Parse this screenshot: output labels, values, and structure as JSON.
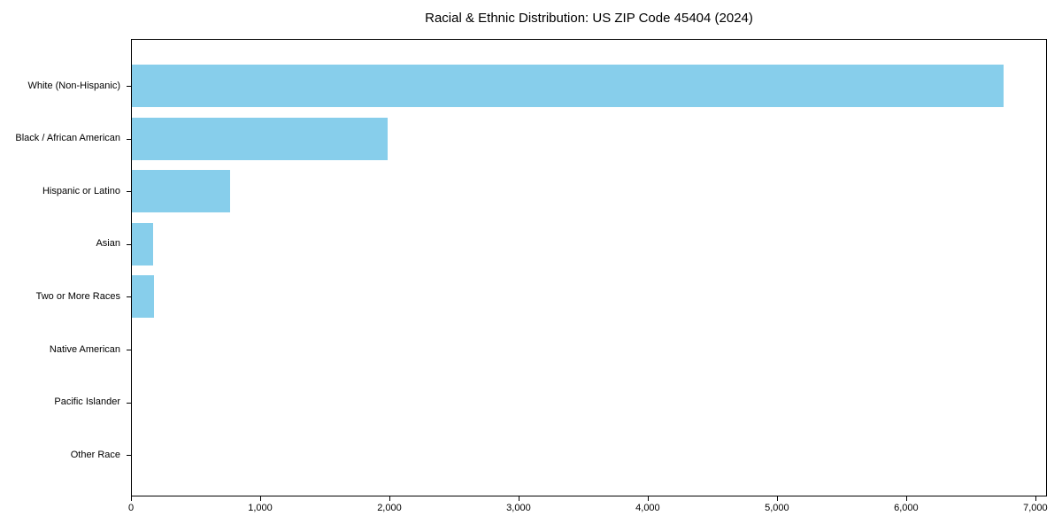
{
  "title": "Racial & Ethnic Distribution: US ZIP Code 45404 (2024)",
  "chart_data": {
    "type": "bar",
    "orientation": "horizontal",
    "title": "Racial & Ethnic Distribution: US ZIP Code 45404 (2024)",
    "xlabel": "",
    "ylabel": "",
    "categories": [
      "White (Non-Hispanic)",
      "Black / African American",
      "Hispanic or Latino",
      "Asian",
      "Two or More Races",
      "Native American",
      "Pacific Islander",
      "Other Race"
    ],
    "values": [
      6750,
      1980,
      760,
      165,
      170,
      0,
      0,
      0
    ],
    "x_ticks": [
      0,
      1000,
      2000,
      3000,
      4000,
      5000,
      6000,
      7000
    ],
    "x_tick_labels": [
      "0",
      "1,000",
      "2,000",
      "3,000",
      "4,000",
      "5,000",
      "6,000",
      "7,000"
    ],
    "xlim": [
      0,
      7090
    ],
    "bar_color": "#87CEEB",
    "axis_color": "#000000",
    "grid": false,
    "legend": null
  }
}
